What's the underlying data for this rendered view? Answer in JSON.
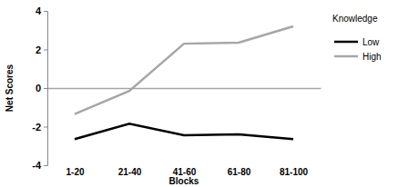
{
  "chart_data": {
    "type": "line",
    "x_label": "Blocks",
    "y_label": "Net Scores",
    "legend_title": "Knowledge",
    "categories": [
      "1-20",
      "21-40",
      "41-60",
      "61-80",
      "81-100"
    ],
    "series": [
      {
        "name": "Low",
        "color": "#000000",
        "values": [
          -2.65,
          -1.85,
          -2.45,
          -2.4,
          -2.65
        ]
      },
      {
        "name": "High",
        "color": "#a6a6a6",
        "values": [
          -1.35,
          -0.15,
          2.3,
          2.35,
          3.2
        ]
      }
    ],
    "ylim": [
      -4,
      4
    ],
    "yticks": [
      -4,
      -2,
      0,
      2,
      4
    ],
    "grid": false,
    "legend": "right"
  }
}
